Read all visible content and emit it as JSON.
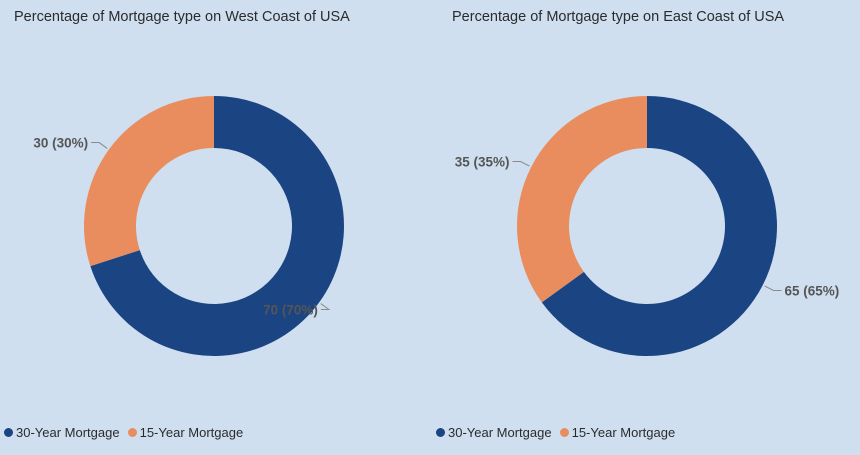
{
  "colors": {
    "background": "#cfdff0",
    "series_30_year": "#1b4483",
    "series_15_year": "#e98c5e",
    "label_text": "#555555",
    "leader_line": "#8a8a8a"
  },
  "chart_data": [
    {
      "type": "pie",
      "style": "donut",
      "title": "Percentage of Mortgage type on West Coast of USA",
      "categories": [
        "30-Year Mortgage",
        "15-Year Mortgage"
      ],
      "values": [
        70,
        30
      ],
      "data_labels": [
        "70 (70%)",
        "30 (30%)"
      ],
      "legend": {
        "position": "bottom-left",
        "entries": [
          "30-Year Mortgage",
          "15-Year Mortgage"
        ]
      }
    },
    {
      "type": "pie",
      "style": "donut",
      "title": "Percentage of Mortgage type on East Coast of USA",
      "categories": [
        "30-Year Mortgage",
        "15-Year Mortgage"
      ],
      "values": [
        65,
        35
      ],
      "data_labels": [
        "65 (65%)",
        "35 (35%)"
      ],
      "legend": {
        "position": "bottom-left",
        "entries": [
          "30-Year Mortgage",
          "15-Year Mortgage"
        ]
      }
    }
  ]
}
